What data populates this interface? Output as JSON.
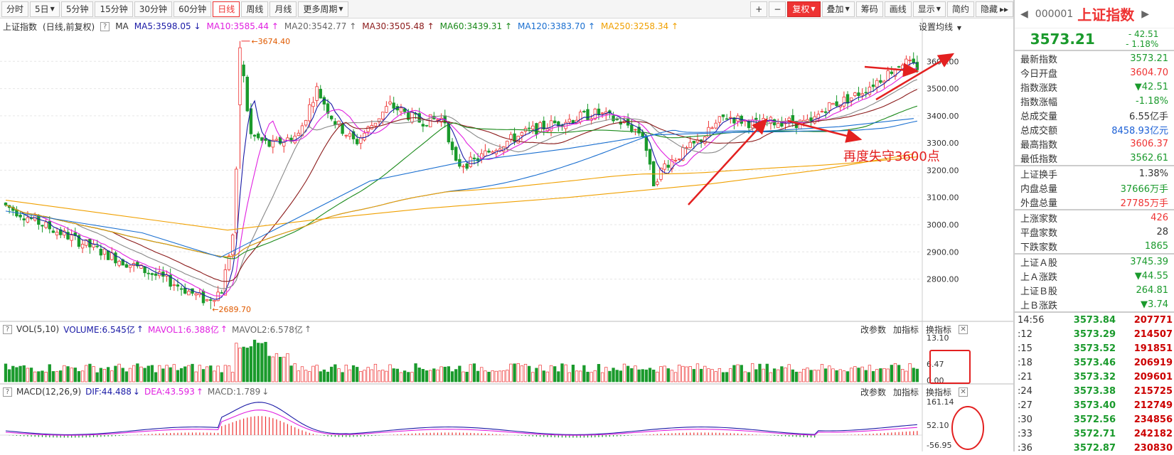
{
  "toolbar": {
    "periods": [
      "分时",
      "5日",
      "5分钟",
      "15分钟",
      "30分钟",
      "60分钟",
      "日线",
      "周线",
      "月线",
      "更多周期"
    ],
    "active_period": "日线",
    "right_tools": [
      "+",
      "−",
      "复权",
      "叠加",
      "筹码",
      "画线",
      "显示",
      "简约",
      "隐藏"
    ]
  },
  "legend": {
    "title": "上证指数",
    "subtitle": "(日线,前复权)",
    "ma_label": "MA",
    "items": [
      {
        "text": "MA5:3598.05",
        "dir": "↓",
        "color": "#1a1aa6"
      },
      {
        "text": "MA10:3585.44",
        "dir": "↑",
        "color": "#e020e0"
      },
      {
        "text": "MA20:3542.77",
        "dir": "↑",
        "color": "#666666"
      },
      {
        "text": "MA30:3505.48",
        "dir": "↑",
        "color": "#8b1a1a"
      },
      {
        "text": "MA60:3439.31",
        "dir": "↑",
        "color": "#1a8a1a"
      },
      {
        "text": "MA120:3383.70",
        "dir": "↑",
        "color": "#1a6fd0"
      },
      {
        "text": "MA250:3258.34",
        "dir": "↑",
        "color": "#f0a000"
      }
    ],
    "settings": "设置均线"
  },
  "price_axis": [
    "3600.00",
    "3500.00",
    "3400.00",
    "3300.00",
    "3200.00",
    "3100.00",
    "3000.00",
    "2900.00",
    "2800.00"
  ],
  "annotations": {
    "high": "3674.40",
    "low": "2689.70",
    "note": "再度失守3600点"
  },
  "vol_panel": {
    "label": "VOL(5,10)",
    "volume": "VOLUME:6.545亿",
    "mavol1": "MAVOL1:6.388亿",
    "mavol2": "MAVOL2:6.578亿",
    "axis": [
      "13.10",
      "6.47",
      "0.00"
    ],
    "tools": [
      "改参数",
      "加指标",
      "换指标"
    ]
  },
  "macd_panel": {
    "label": "MACD(12,26,9)",
    "dif": "DIF:44.488",
    "dea": "DEA:43.593",
    "macd": "MACD:1.789",
    "axis": [
      "161.14",
      "52.10",
      "-56.95"
    ],
    "tools": [
      "改参数",
      "加指标",
      "换指标"
    ]
  },
  "right_panel": {
    "code": "000001",
    "name": "上证指数",
    "price": "3573.21",
    "change": "- 42.51",
    "change_pct": "- 1.18%",
    "stats": [
      {
        "k": "最新指数",
        "v": "3573.21",
        "c": "green"
      },
      {
        "k": "今日开盘",
        "v": "3604.70",
        "c": "red"
      },
      {
        "k": "指数涨跌",
        "v": "▼42.51",
        "c": "green"
      },
      {
        "k": "指数涨幅",
        "v": "-1.18%",
        "c": "green"
      },
      {
        "k": "总成交量",
        "v": "6.55亿手",
        "c": ""
      },
      {
        "k": "总成交额",
        "v": "8458.93亿元",
        "c": "blue"
      },
      {
        "k": "最高指数",
        "v": "3606.37",
        "c": "red"
      },
      {
        "k": "最低指数",
        "v": "3562.61",
        "c": "green"
      }
    ],
    "stats2": [
      {
        "k": "上证换手",
        "v": "1.38%",
        "c": ""
      },
      {
        "k": "内盘总量",
        "v": "37666万手",
        "c": "green"
      },
      {
        "k": "外盘总量",
        "v": "27785万手",
        "c": "red"
      }
    ],
    "stats3": [
      {
        "k": "上涨家数",
        "v": "426",
        "c": "red"
      },
      {
        "k": "平盘家数",
        "v": "28",
        "c": ""
      },
      {
        "k": "下跌家数",
        "v": "1865",
        "c": "green"
      }
    ],
    "stats4": [
      {
        "k": "上证Ａ股",
        "v": "3745.39",
        "c": "green"
      },
      {
        "k": "上Ａ涨跌",
        "v": "▼44.55",
        "c": "green"
      },
      {
        "k": "上证Ｂ股",
        "v": "264.81",
        "c": "green"
      },
      {
        "k": "上Ｂ涨跌",
        "v": "▼3.74",
        "c": "green"
      }
    ],
    "ticks": [
      {
        "t": "14:56",
        "p": "3573.84",
        "v": "207771"
      },
      {
        "t": ":12",
        "p": "3573.29",
        "v": "214507"
      },
      {
        "t": ":15",
        "p": "3573.52",
        "v": "191851"
      },
      {
        "t": ":18",
        "p": "3573.46",
        "v": "206919"
      },
      {
        "t": ":21",
        "p": "3573.32",
        "v": "209601"
      },
      {
        "t": ":24",
        "p": "3573.38",
        "v": "215725"
      },
      {
        "t": ":27",
        "p": "3573.40",
        "v": "212749"
      },
      {
        "t": ":30",
        "p": "3572.56",
        "v": "234856"
      },
      {
        "t": ":33",
        "p": "3572.71",
        "v": "242182"
      },
      {
        "t": ":36",
        "p": "3572.87",
        "v": "230830"
      }
    ]
  },
  "chart_data": {
    "type": "candlestick",
    "y_range": [
      2650,
      3700
    ],
    "key_points": [
      {
        "label": "high",
        "value": 3674.4
      },
      {
        "label": "low",
        "value": 2689.7
      }
    ]
  }
}
